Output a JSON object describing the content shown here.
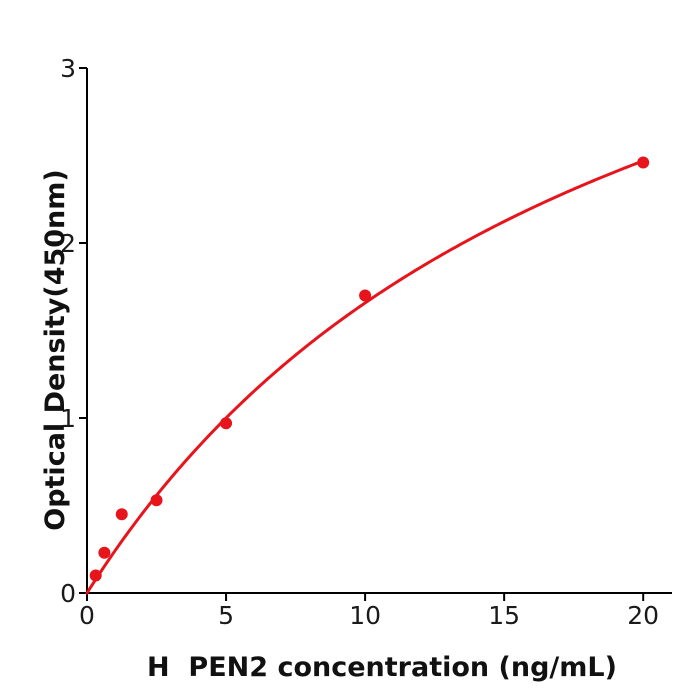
{
  "page": {
    "background": "#ffffff"
  },
  "chart_data": {
    "type": "scatter",
    "title": "",
    "xlabel": "H  PEN2 concentration (ng/mL)",
    "ylabel": "Optical Density(450nm)",
    "x_ticks": [
      0,
      5,
      10,
      15,
      20
    ],
    "y_ticks": [
      0,
      1,
      2,
      3
    ],
    "xlim": [
      0,
      21
    ],
    "ylim": [
      0,
      3
    ],
    "grid": false,
    "legend": "none",
    "points": {
      "x": [
        0.313,
        0.625,
        1.25,
        2.5,
        5,
        10,
        20
      ],
      "y": [
        0.1,
        0.23,
        0.45,
        0.53,
        0.97,
        1.7,
        2.46
      ]
    },
    "fit_curve": {
      "model": "michaelis_menten",
      "vmax": 4.84,
      "km": 19.2,
      "x_start": 0,
      "x_end": 20
    },
    "colors": {
      "series": "#e8141b",
      "axis": "#000000",
      "background": "#ffffff"
    }
  }
}
